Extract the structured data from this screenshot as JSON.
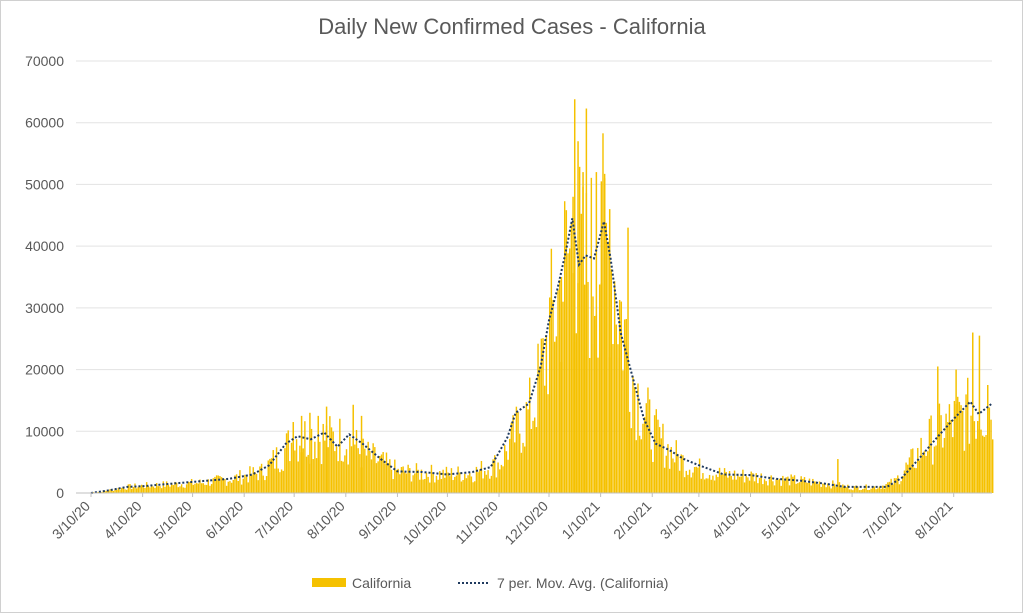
{
  "chart_data": {
    "type": "bar",
    "title": "Daily New Confirmed Cases - California",
    "ylim": [
      0,
      70000
    ],
    "yticks": [
      0,
      10000,
      20000,
      30000,
      40000,
      50000,
      60000,
      70000
    ],
    "xticks": [
      "3/10/20",
      "4/10/20",
      "5/10/20",
      "6/10/20",
      "7/10/20",
      "8/10/20",
      "9/10/20",
      "10/10/20",
      "11/10/20",
      "12/10/20",
      "1/10/21",
      "2/10/21",
      "3/10/21",
      "4/10/21",
      "5/10/21",
      "6/10/21",
      "7/10/21",
      "8/10/21"
    ],
    "x_start": "2020-03-01",
    "x_end": "2021-09-02",
    "legend_position": "bottom",
    "grid": true,
    "colors": {
      "bars": "#f5c100",
      "moving_average": "#1f3a5f"
    },
    "series": [
      {
        "name": "California",
        "kind": "bar",
        "points": [
          [
            "2020-03-01",
            0
          ],
          [
            "2020-03-15",
            200
          ],
          [
            "2020-04-01",
            1000
          ],
          [
            "2020-04-10",
            1200
          ],
          [
            "2020-05-01",
            1500
          ],
          [
            "2020-05-15",
            1700
          ],
          [
            "2020-06-01",
            2300
          ],
          [
            "2020-06-10",
            2800
          ],
          [
            "2020-06-20",
            3500
          ],
          [
            "2020-06-30",
            6000
          ],
          [
            "2020-07-10",
            9000
          ],
          [
            "2020-07-20",
            9500
          ],
          [
            "2020-07-31",
            9000
          ],
          [
            "2020-08-10",
            9000
          ],
          [
            "2020-08-20",
            6500
          ],
          [
            "2020-08-31",
            5000
          ],
          [
            "2020-09-10",
            3500
          ],
          [
            "2020-09-25",
            3300
          ],
          [
            "2020-10-10",
            3100
          ],
          [
            "2020-10-25",
            3300
          ],
          [
            "2020-11-10",
            5000
          ],
          [
            "2020-11-20",
            10000
          ],
          [
            "2020-11-30",
            14000
          ],
          [
            "2020-12-05",
            20000
          ],
          [
            "2020-12-10",
            27000
          ],
          [
            "2020-12-15",
            32000
          ],
          [
            "2020-12-20",
            38000
          ],
          [
            "2020-12-25",
            42000
          ],
          [
            "2020-12-30",
            36000
          ],
          [
            "2021-01-04",
            38000
          ],
          [
            "2021-01-10",
            41000
          ],
          [
            "2021-01-15",
            40000
          ],
          [
            "2021-01-20",
            33000
          ],
          [
            "2021-01-25",
            25000
          ],
          [
            "2021-01-31",
            17000
          ],
          [
            "2021-02-10",
            10000
          ],
          [
            "2021-02-20",
            7000
          ],
          [
            "2021-03-01",
            5000
          ],
          [
            "2021-03-10",
            4000
          ],
          [
            "2021-03-25",
            3000
          ],
          [
            "2021-04-10",
            2800
          ],
          [
            "2021-04-25",
            2300
          ],
          [
            "2021-05-10",
            2000
          ],
          [
            "2021-05-25",
            1600
          ],
          [
            "2021-06-10",
            900
          ],
          [
            "2021-06-25",
            1000
          ],
          [
            "2021-07-05",
            1800
          ],
          [
            "2021-07-15",
            5000
          ],
          [
            "2021-07-25",
            8500
          ],
          [
            "2021-08-05",
            11000
          ],
          [
            "2021-08-15",
            12500
          ],
          [
            "2021-08-25",
            14000
          ],
          [
            "2021-09-02",
            14500
          ]
        ],
        "spikes": [
          [
            "2020-07-09",
            11500
          ],
          [
            "2020-07-14",
            12500
          ],
          [
            "2020-07-19",
            13000
          ],
          [
            "2020-07-24",
            12500
          ],
          [
            "2020-07-29",
            14000
          ],
          [
            "2020-08-14",
            14300
          ],
          [
            "2020-08-19",
            12500
          ],
          [
            "2020-12-17",
            35000
          ],
          [
            "2020-12-24",
            48000
          ],
          [
            "2020-12-25",
            63800
          ],
          [
            "2020-12-27",
            57000
          ],
          [
            "2020-12-30",
            52000
          ],
          [
            "2021-01-01",
            62300
          ],
          [
            "2021-01-07",
            52000
          ],
          [
            "2021-01-10",
            50500
          ],
          [
            "2021-01-12",
            51000
          ],
          [
            "2021-01-15",
            46000
          ],
          [
            "2021-01-26",
            43000
          ],
          [
            "2021-06-01",
            5500
          ],
          [
            "2021-07-31",
            20500
          ],
          [
            "2021-08-11",
            20000
          ],
          [
            "2021-08-21",
            26000
          ],
          [
            "2021-08-25",
            25500
          ],
          [
            "2021-08-30",
            17500
          ]
        ]
      },
      {
        "name": "7 per. Mov. Avg. (California)",
        "kind": "line",
        "style": "dotted",
        "points": [
          [
            "2020-03-10",
            0
          ],
          [
            "2020-03-20",
            400
          ],
          [
            "2020-04-01",
            1000
          ],
          [
            "2020-04-10",
            1100
          ],
          [
            "2020-05-01",
            1600
          ],
          [
            "2020-06-01",
            2300
          ],
          [
            "2020-06-15",
            3000
          ],
          [
            "2020-06-25",
            4500
          ],
          [
            "2020-07-05",
            8000
          ],
          [
            "2020-07-12",
            9200
          ],
          [
            "2020-07-20",
            8700
          ],
          [
            "2020-07-28",
            9800
          ],
          [
            "2020-08-05",
            7500
          ],
          [
            "2020-08-12",
            9500
          ],
          [
            "2020-08-20",
            8000
          ],
          [
            "2020-08-31",
            5500
          ],
          [
            "2020-09-10",
            3500
          ],
          [
            "2020-09-25",
            3400
          ],
          [
            "2020-10-10",
            3000
          ],
          [
            "2020-10-25",
            3400
          ],
          [
            "2020-11-05",
            4200
          ],
          [
            "2020-11-15",
            9000
          ],
          [
            "2020-11-20",
            13000
          ],
          [
            "2020-11-28",
            14500
          ],
          [
            "2020-12-05",
            20500
          ],
          [
            "2020-12-10",
            28000
          ],
          [
            "2020-12-15",
            33000
          ],
          [
            "2020-12-20",
            39000
          ],
          [
            "2020-12-24",
            44500
          ],
          [
            "2020-12-28",
            37000
          ],
          [
            "2021-01-01",
            38500
          ],
          [
            "2021-01-06",
            38000
          ],
          [
            "2021-01-10",
            42000
          ],
          [
            "2021-01-12",
            44000
          ],
          [
            "2021-01-16",
            38000
          ],
          [
            "2021-01-22",
            26000
          ],
          [
            "2021-01-28",
            20000
          ],
          [
            "2021-02-05",
            12000
          ],
          [
            "2021-02-12",
            8000
          ],
          [
            "2021-02-20",
            7000
          ],
          [
            "2021-03-01",
            5500
          ],
          [
            "2021-03-10",
            4500
          ],
          [
            "2021-03-25",
            3000
          ],
          [
            "2021-04-10",
            2900
          ],
          [
            "2021-04-25",
            2300
          ],
          [
            "2021-05-10",
            2000
          ],
          [
            "2021-05-25",
            1500
          ],
          [
            "2021-06-05",
            1000
          ],
          [
            "2021-06-20",
            1000
          ],
          [
            "2021-07-01",
            1000
          ],
          [
            "2021-07-10",
            2500
          ],
          [
            "2021-07-20",
            5500
          ],
          [
            "2021-07-31",
            9000
          ],
          [
            "2021-08-10",
            12000
          ],
          [
            "2021-08-20",
            14800
          ],
          [
            "2021-08-25",
            12800
          ],
          [
            "2021-09-02",
            14500
          ]
        ]
      }
    ]
  }
}
